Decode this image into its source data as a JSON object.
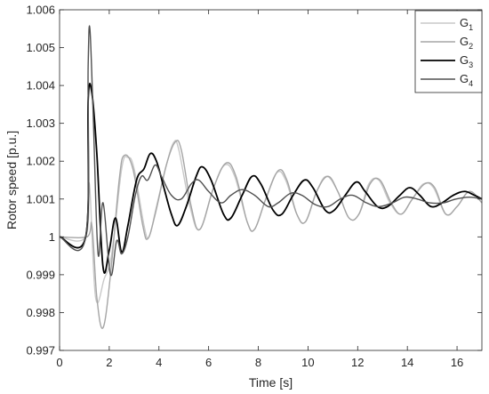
{
  "chart_data": {
    "type": "line",
    "title": "",
    "xlabel": "Time [s]",
    "ylabel": "Rotor speed [p.u.]",
    "xlim": [
      0,
      17
    ],
    "ylim": [
      0.997,
      1.006
    ],
    "xticks": [
      0,
      2,
      4,
      6,
      8,
      10,
      12,
      14,
      16
    ],
    "xtick_labels": [
      "0",
      "2",
      "4",
      "6",
      "8",
      "10",
      "12",
      "14",
      "16"
    ],
    "yticks": [
      0.997,
      0.998,
      0.999,
      1,
      1.001,
      1.002,
      1.003,
      1.004,
      1.005,
      1.006
    ],
    "ytick_labels": [
      "0.997",
      "0.998",
      "0.999",
      "1",
      "1.001",
      "1.002",
      "1.003",
      "1.004",
      "1.005",
      "1.006"
    ],
    "grid": false,
    "legend_position": "top-right",
    "series": [
      {
        "name": "G",
        "subscript": "1",
        "color": "#c8c8c8",
        "points": [
          [
            0,
            1.0
          ],
          [
            1.05,
            1.0
          ],
          [
            1.2,
            1.0014
          ],
          [
            1.45,
            0.9984
          ],
          [
            1.8,
            0.9989
          ],
          [
            2.1,
            0.99955
          ],
          [
            2.5,
            1.0018
          ],
          [
            2.75,
            1.0021
          ],
          [
            3.0,
            1.0018
          ],
          [
            3.4,
            1.0003
          ],
          [
            3.6,
            1.0
          ],
          [
            3.9,
            1.0008
          ],
          [
            4.3,
            1.0019
          ],
          [
            4.6,
            1.0025
          ],
          [
            4.8,
            1.0023
          ],
          [
            5.25,
            1.0008
          ],
          [
            5.65,
            1.0002
          ],
          [
            6.2,
            1.0013
          ],
          [
            6.65,
            1.0019
          ],
          [
            7.05,
            1.0016
          ],
          [
            7.55,
            1.0004
          ],
          [
            7.85,
            1.0002
          ],
          [
            8.3,
            1.001
          ],
          [
            8.75,
            1.0017
          ],
          [
            9.1,
            1.0015
          ],
          [
            9.55,
            1.0006
          ],
          [
            9.9,
            1.0004
          ],
          [
            10.35,
            1.0012
          ],
          [
            10.75,
            1.0016
          ],
          [
            11.2,
            1.0012
          ],
          [
            11.65,
            1.0005
          ],
          [
            12.05,
            1.0006
          ],
          [
            12.45,
            1.0014
          ],
          [
            12.85,
            1.0015
          ],
          [
            13.3,
            1.0009
          ],
          [
            13.75,
            1.0006
          ],
          [
            14.2,
            1.001
          ],
          [
            14.65,
            1.0014
          ],
          [
            15.05,
            1.0013
          ],
          [
            15.55,
            1.0006
          ],
          [
            16.0,
            1.0008
          ],
          [
            16.5,
            1.0012
          ],
          [
            17.0,
            1.0009
          ]
        ]
      },
      {
        "name": "G",
        "subscript": "2",
        "color": "#a5a5a5",
        "points": [
          [
            0,
            1.0
          ],
          [
            1.1,
            1.0
          ],
          [
            1.3,
            1.0003
          ],
          [
            1.5,
            0.9984
          ],
          [
            1.75,
            0.9976
          ],
          [
            2.05,
            0.999
          ],
          [
            2.4,
            1.0015
          ],
          [
            2.6,
            1.00215
          ],
          [
            2.95,
            1.0018
          ],
          [
            3.35,
            1.0003
          ],
          [
            3.55,
            0.99995
          ],
          [
            3.85,
            1.0006
          ],
          [
            4.3,
            1.0019
          ],
          [
            4.65,
            1.0025
          ],
          [
            4.9,
            1.0023
          ],
          [
            5.3,
            1.0008
          ],
          [
            5.65,
            1.0002
          ],
          [
            6.2,
            1.0013
          ],
          [
            6.7,
            1.00195
          ],
          [
            7.1,
            1.0016
          ],
          [
            7.55,
            1.0004
          ],
          [
            7.85,
            1.0002
          ],
          [
            8.3,
            1.001
          ],
          [
            8.8,
            1.00175
          ],
          [
            9.15,
            1.0015
          ],
          [
            9.55,
            1.0006
          ],
          [
            9.9,
            1.0004
          ],
          [
            10.35,
            1.0012
          ],
          [
            10.8,
            1.0016
          ],
          [
            11.2,
            1.0012
          ],
          [
            11.65,
            1.0005
          ],
          [
            12.05,
            1.0006
          ],
          [
            12.5,
            1.0014
          ],
          [
            12.9,
            1.0015
          ],
          [
            13.35,
            1.0009
          ],
          [
            13.75,
            1.0006
          ],
          [
            14.2,
            1.001
          ],
          [
            14.7,
            1.0014
          ],
          [
            15.1,
            1.0013
          ],
          [
            15.55,
            1.0006
          ],
          [
            16.0,
            1.0008
          ],
          [
            16.5,
            1.0012
          ],
          [
            17.0,
            1.0009
          ]
        ]
      },
      {
        "name": "G",
        "subscript": "3",
        "color": "#000000",
        "points": [
          [
            0,
            1.0
          ],
          [
            1.05,
            1.0
          ],
          [
            1.15,
            1.0036
          ],
          [
            1.3,
            1.0038
          ],
          [
            1.5,
            1.0022
          ],
          [
            1.75,
            0.9992
          ],
          [
            2.0,
            0.99965
          ],
          [
            2.25,
            1.0005
          ],
          [
            2.5,
            0.9996
          ],
          [
            2.75,
            1.0003
          ],
          [
            3.1,
            1.0015
          ],
          [
            3.4,
            1.0018
          ],
          [
            3.65,
            1.0022
          ],
          [
            3.9,
            1.002
          ],
          [
            4.2,
            1.0013
          ],
          [
            4.5,
            1.0006
          ],
          [
            4.75,
            1.0003
          ],
          [
            5.1,
            1.0008
          ],
          [
            5.5,
            1.0016
          ],
          [
            5.75,
            1.00185
          ],
          [
            6.1,
            1.0015
          ],
          [
            6.6,
            1.0006
          ],
          [
            6.9,
            1.0005
          ],
          [
            7.35,
            1.0011
          ],
          [
            7.75,
            1.0016
          ],
          [
            8.1,
            1.0014
          ],
          [
            8.6,
            1.0007
          ],
          [
            8.95,
            1.0006
          ],
          [
            9.4,
            1.0011
          ],
          [
            9.85,
            1.0015
          ],
          [
            10.2,
            1.0013
          ],
          [
            10.7,
            1.0007
          ],
          [
            11.05,
            1.0007
          ],
          [
            11.5,
            1.0011
          ],
          [
            11.95,
            1.00145
          ],
          [
            12.3,
            1.0012
          ],
          [
            12.8,
            1.0008
          ],
          [
            13.2,
            1.0008
          ],
          [
            13.7,
            1.0011
          ],
          [
            14.1,
            1.0013
          ],
          [
            14.5,
            1.0011
          ],
          [
            14.95,
            1.0008
          ],
          [
            15.4,
            1.0009
          ],
          [
            15.85,
            1.0011
          ],
          [
            16.3,
            1.0012
          ],
          [
            16.7,
            1.0011
          ],
          [
            17.0,
            1.001
          ]
        ]
      },
      {
        "name": "G",
        "subscript": "4",
        "color": "#505050",
        "points": [
          [
            0,
            1.0
          ],
          [
            1.05,
            1.0
          ],
          [
            1.15,
            1.0045
          ],
          [
            1.22,
            1.0055
          ],
          [
            1.35,
            1.0033
          ],
          [
            1.55,
            0.99955
          ],
          [
            1.75,
            1.0009
          ],
          [
            2.05,
            0.999
          ],
          [
            2.3,
            0.9999
          ],
          [
            2.5,
            0.99955
          ],
          [
            2.75,
            1.0
          ],
          [
            3.05,
            1.0011
          ],
          [
            3.3,
            1.0016
          ],
          [
            3.55,
            1.0015
          ],
          [
            3.85,
            1.0019
          ],
          [
            4.1,
            1.0016
          ],
          [
            4.5,
            1.0011
          ],
          [
            4.9,
            1.001
          ],
          [
            5.3,
            1.0014
          ],
          [
            5.6,
            1.0015
          ],
          [
            6.0,
            1.0012
          ],
          [
            6.5,
            1.0009
          ],
          [
            6.9,
            1.0011
          ],
          [
            7.35,
            1.00125
          ],
          [
            7.85,
            1.0011
          ],
          [
            8.4,
            1.0008
          ],
          [
            8.8,
            1.0009
          ],
          [
            9.3,
            1.00115
          ],
          [
            9.75,
            1.0011
          ],
          [
            10.3,
            1.00085
          ],
          [
            10.8,
            1.0008
          ],
          [
            11.3,
            1.001
          ],
          [
            11.8,
            1.0011
          ],
          [
            12.35,
            1.0009
          ],
          [
            12.85,
            1.0008
          ],
          [
            13.4,
            1.0009
          ],
          [
            13.9,
            1.00105
          ],
          [
            14.4,
            1.001
          ],
          [
            14.9,
            1.0009
          ],
          [
            15.45,
            1.0009
          ],
          [
            15.95,
            1.001
          ],
          [
            16.5,
            1.00105
          ],
          [
            17.0,
            1.001
          ]
        ]
      }
    ]
  }
}
